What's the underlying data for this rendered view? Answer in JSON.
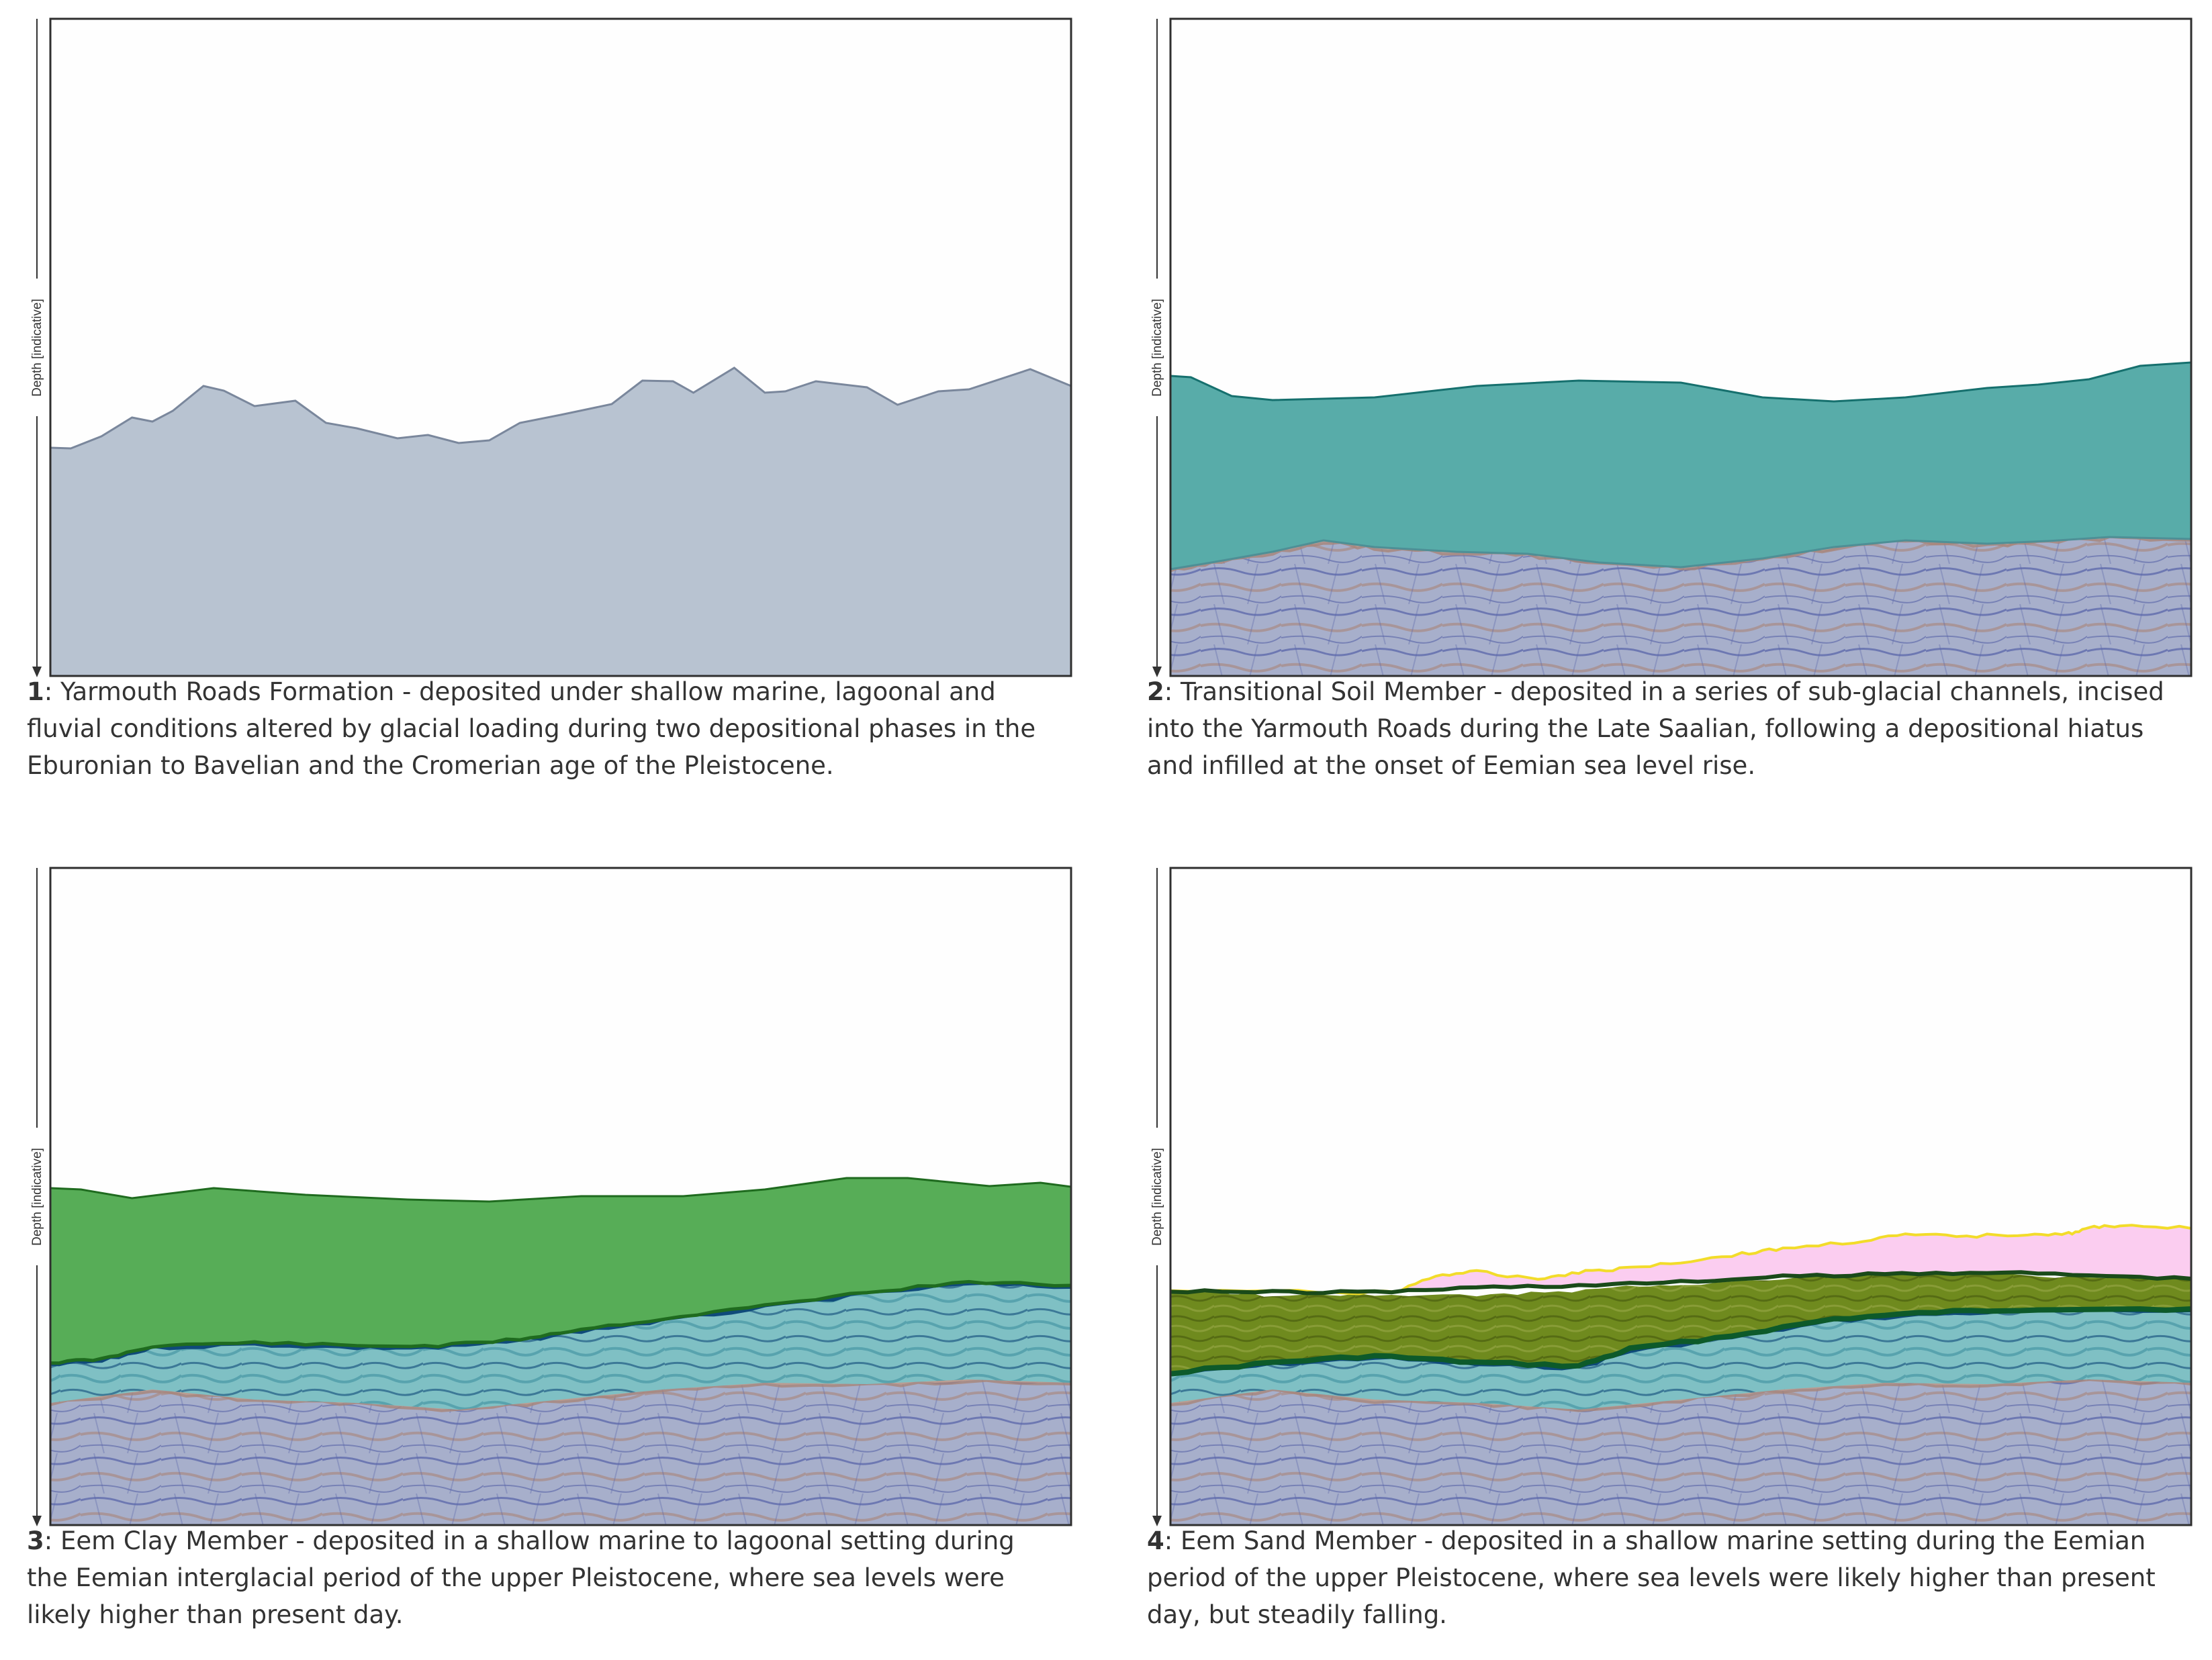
{
  "axis_label": "Depth [indicative]",
  "panels": [
    {
      "number": "1",
      "caption": ": Yarmouth Roads Formation - deposited under shallow marine, lagoonal and fluvial conditions altered by glacial loading during two depositional phases in the Eburonian to Bavelian and the Cromerian age of the Pleistocene.",
      "layers": [
        "Yarmouth Roads Formation"
      ]
    },
    {
      "number": "2",
      "caption": ": Transitional Soil Member - deposited in a series of sub-glacial channels, incised into the Yarmouth Roads during the Late Saalian, following a depositional hiatus and infilled at the onset of Eemian sea level rise.",
      "layers": [
        "Yarmouth Roads Formation",
        "Transitional Soil Member"
      ]
    },
    {
      "number": "3",
      "caption": ": Eem Clay Member - deposited in a shallow marine to lagoonal setting during the Eemian interglacial period of the upper Pleistocene, where sea levels were likely higher than present day.",
      "layers": [
        "Yarmouth Roads Formation",
        "Transitional Soil Member",
        "Eem Clay Member"
      ]
    },
    {
      "number": "4",
      "caption": ": Eem Sand Member - deposited in a shallow marine setting during the Eemian period of the upper Pleistocene, where sea levels were likely higher than present day, but steadily falling.",
      "layers": [
        "Yarmouth Roads Formation",
        "Transitional Soil Member",
        "Eem Clay Member",
        "Eem Sand Member"
      ]
    }
  ],
  "colors": {
    "yarmouth_fill": "#b8c3d1",
    "yarmouth_line": "#7a879c",
    "seismic_base": "#a7afcb",
    "seismic_dark": "#3d4a9c",
    "seismic_brown": "#a88478",
    "transitional_fill": "#58aca9",
    "transitional_line": "#16706e",
    "transitional_seismic": "#7fc0c4",
    "transitional_dark": "#0f4a7a",
    "eem_clay_fill": "#57ad57",
    "eem_clay_line": "#1f6b1f",
    "eem_clay_seismic": "#6f8a1e",
    "eem_sand_fill": "#fbcdf0",
    "eem_sand_line": "#f2dc2a",
    "frame": "#2f2f2f"
  }
}
